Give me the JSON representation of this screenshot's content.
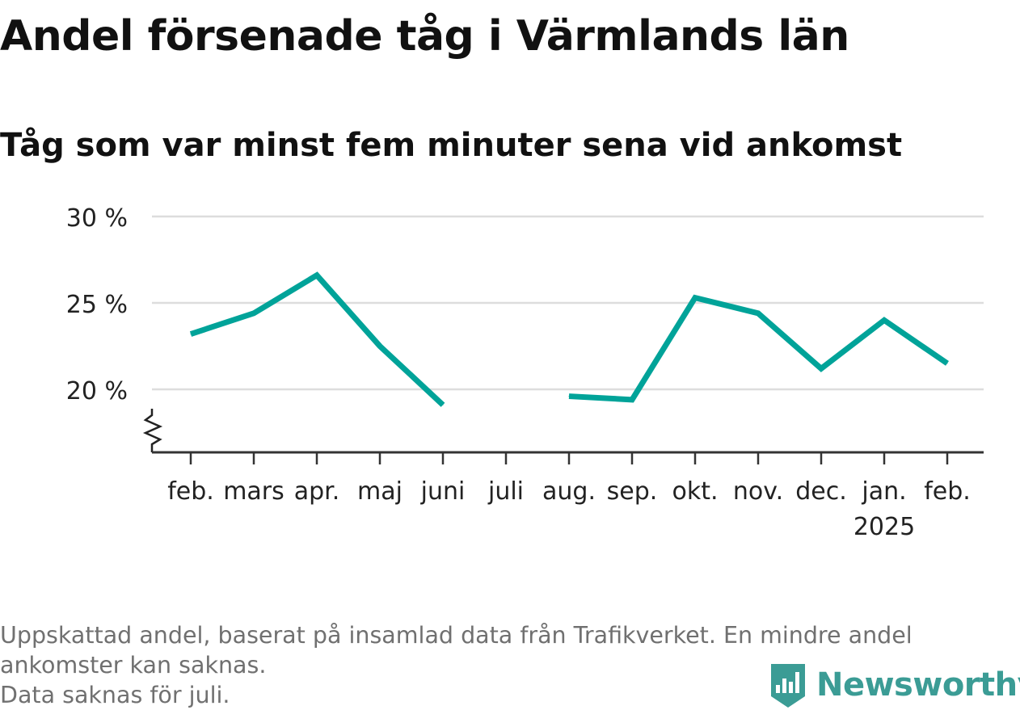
{
  "header": {
    "title": "Andel försenade tåg i Värmlands län",
    "subtitle": "Tåg som var minst fem minuter sena vid ankomst"
  },
  "footnote": {
    "line1": "Uppskattad andel, baserat på insamlad data från Trafikverket. En mindre andel",
    "line2": "ankomster kan saknas.",
    "line3": "Data saknas för juli."
  },
  "logo": {
    "text": "Newsworthy",
    "color": "#3b9c95",
    "icon": "bar-chart-badge-icon"
  },
  "chart_data": {
    "type": "line",
    "title": "Andel försenade tåg i Värmlands län",
    "subtitle": "Tåg som var minst fem minuter sena vid ankomst",
    "categories": [
      "feb.",
      "mars",
      "apr.",
      "maj",
      "juni",
      "juli",
      "aug.",
      "sep.",
      "okt.",
      "nov.",
      "dec.",
      "jan.",
      "feb."
    ],
    "category_sublabels": [
      "",
      "",
      "",
      "",
      "",
      "",
      "",
      "",
      "",
      "",
      "",
      "2025",
      ""
    ],
    "series": [
      {
        "values": [
          23.2,
          24.4,
          26.6,
          22.5,
          19.1,
          null,
          19.6,
          19.4,
          25.3,
          24.4,
          21.2,
          24.0,
          21.5
        ],
        "color": "#00a399"
      }
    ],
    "yticks": [
      20,
      25,
      30
    ],
    "ytick_labels": [
      "20 %",
      "25 %",
      "30 %"
    ],
    "ylim": [
      16.4,
      30
    ],
    "y_axis_break": true,
    "grid": true,
    "legend": "none"
  }
}
